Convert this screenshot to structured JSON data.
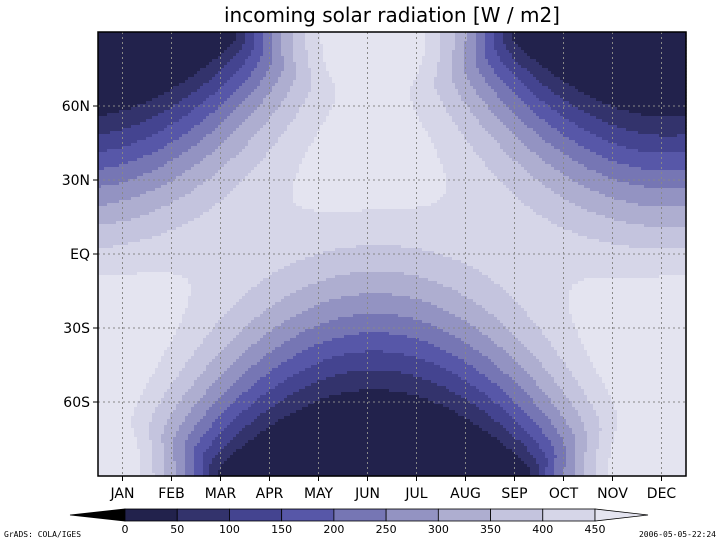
{
  "chart_data": {
    "type": "heatmap",
    "title": "incoming solar radiation [W / m2]",
    "x_tick_labels": [
      "JAN",
      "FEB",
      "MAR",
      "APR",
      "MAY",
      "JUN",
      "JUL",
      "AUG",
      "SEP",
      "OCT",
      "NOV",
      "DEC"
    ],
    "y_tick_labels": [
      {
        "label": "60N",
        "lat": 60
      },
      {
        "label": "30N",
        "lat": 30
      },
      {
        "label": "EQ",
        "lat": 0
      },
      {
        "label": "30S",
        "lat": -30
      },
      {
        "label": "60S",
        "lat": -60
      }
    ],
    "ylim": [
      -90,
      90
    ],
    "grid": true,
    "contour_levels": [
      0,
      50,
      100,
      150,
      200,
      250,
      300,
      350,
      400,
      450
    ],
    "colors": [
      "#000000",
      "#22224c",
      "#33336c",
      "#444490",
      "#5757a8",
      "#7676b4",
      "#9393c2",
      "#aeaed0",
      "#c4c4de",
      "#d6d6e8",
      "#e4e4f0"
    ],
    "colorbar_labels": [
      "0",
      "50",
      "100",
      "150",
      "200",
      "250",
      "300",
      "350",
      "400",
      "450"
    ]
  },
  "footer": {
    "left": "GrADS: COLA/IGES",
    "right": "2006-05-05-22:24"
  }
}
